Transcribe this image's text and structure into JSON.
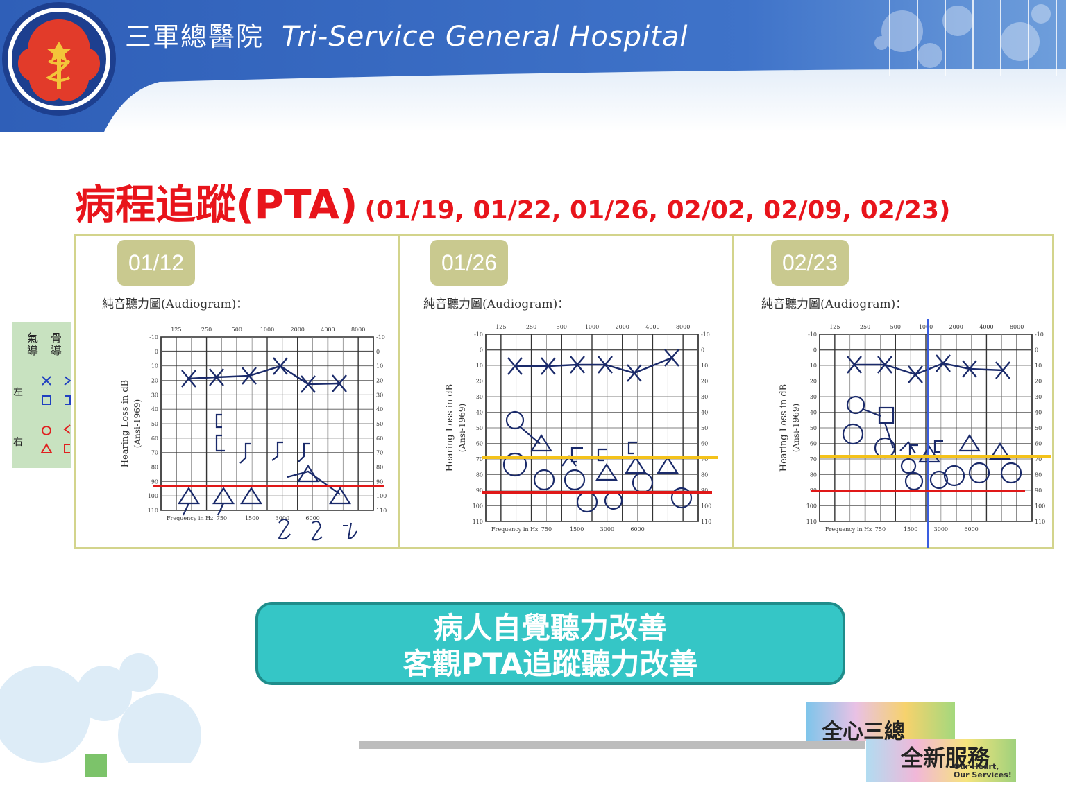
{
  "header": {
    "hospital_name_zh": "三軍總醫院",
    "hospital_name_en": "Tri-Service General Hospital",
    "logo_icon": "hospital-crest-logo",
    "banner_color": "#3a6cc4"
  },
  "title": {
    "main": "病程追蹤(PTA)",
    "dates": "(01/19, 01/22, 01/26, 02/02, 02/09, 02/23)",
    "color": "#e8141b"
  },
  "legend": {
    "air": "氣導",
    "bone": "骨導",
    "left": "左",
    "right": "右"
  },
  "audiograms": [
    {
      "date": "01/12",
      "label": "純音聽力圖(Audiogram)："
    },
    {
      "date": "01/26",
      "label": "純音聽力圖(Audiogram)："
    },
    {
      "date": "02/23",
      "label": "純音聽力圖(Audiogram)："
    }
  ],
  "grid_text": {
    "freq_top": [
      "125",
      "250",
      "500",
      "1000",
      "2000",
      "4000",
      "8000"
    ],
    "db_ticks": [
      "-10",
      "0",
      "10",
      "20",
      "30",
      "40",
      "50",
      "60",
      "70",
      "80",
      "90",
      "100",
      "110"
    ],
    "ylabel": "Hearing Loss in dB",
    "ylabel2": "(Ansi-1969)",
    "freq_bottom_label": "Frequency in Hz",
    "freq_bottom": [
      "750",
      "1500",
      "3000",
      "6000"
    ]
  },
  "conclusion": {
    "line1": "病人自覺聽力改善",
    "line2": "客觀PTA追蹤聽力改善",
    "color": "#35c6c6"
  },
  "brand": {
    "line1": "全心三總",
    "line2": "全新服務",
    "tagline1": "Our Heart,",
    "tagline2": "Our Services!"
  }
}
